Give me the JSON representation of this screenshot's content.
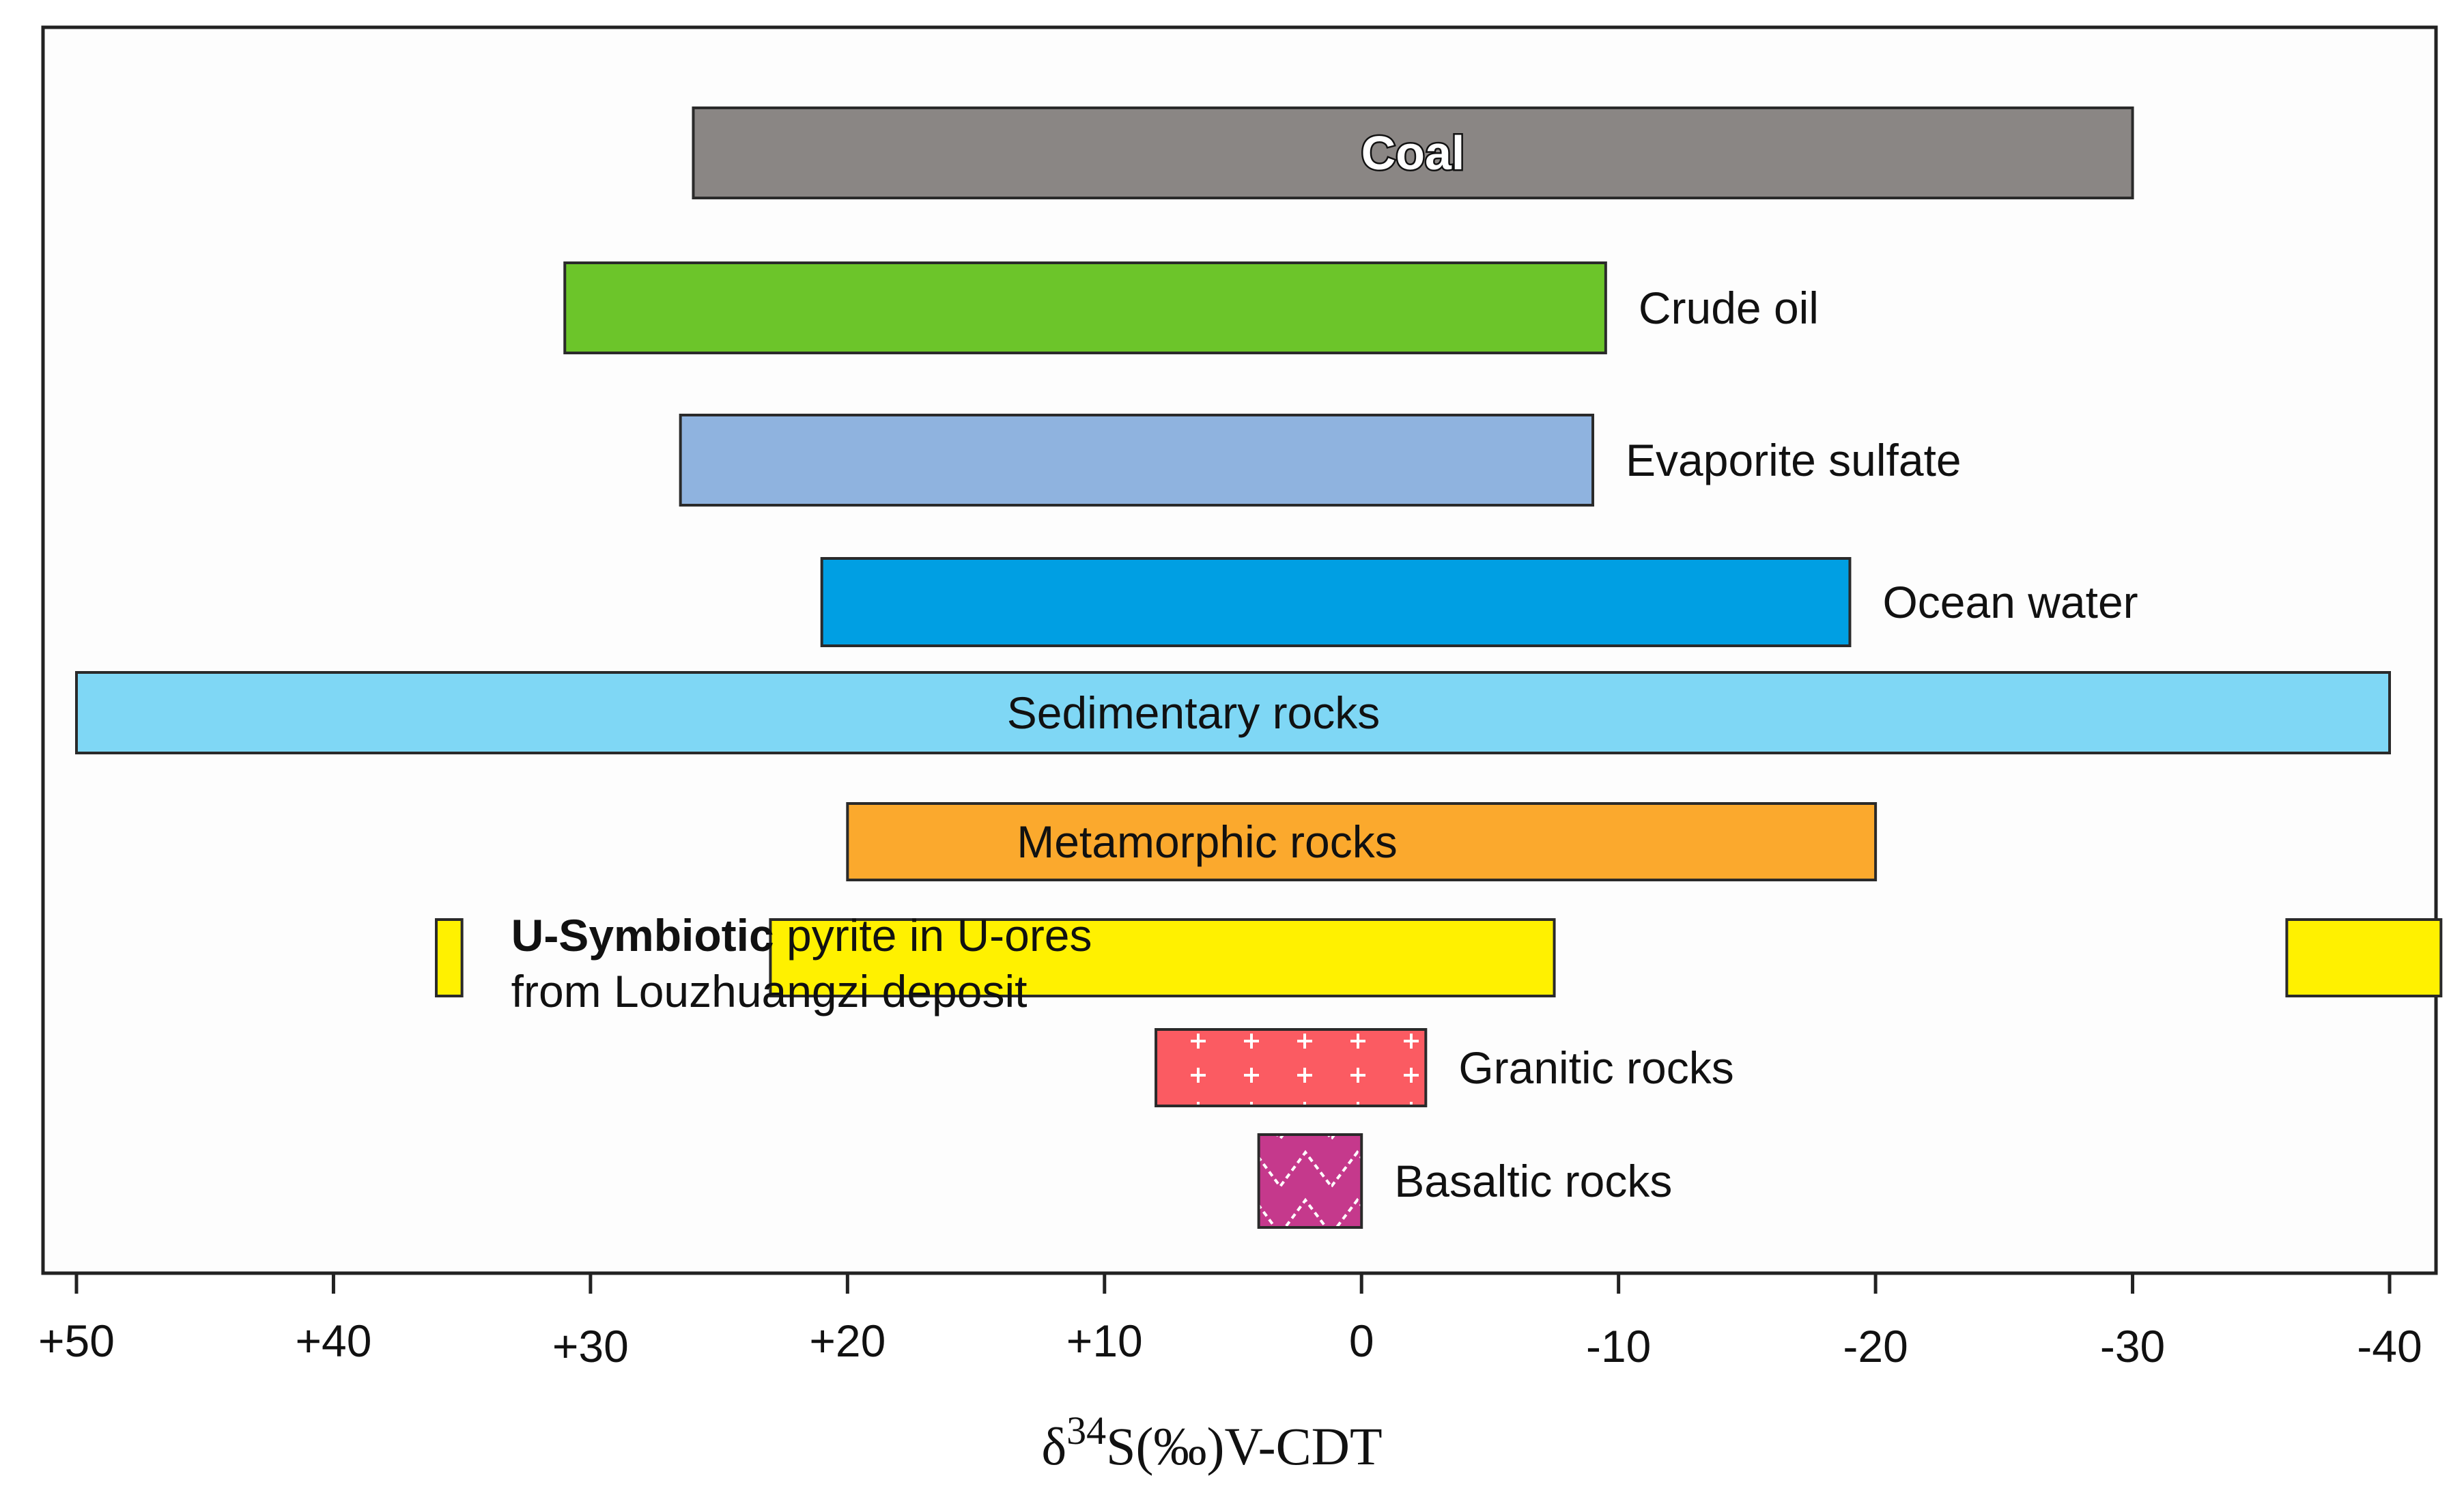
{
  "chart_data": {
    "type": "bar",
    "orientation": "horizontal",
    "xlabel": "δ34S(‰)V-CDT",
    "xlabel_parts": {
      "delta": "δ",
      "superscript": "34",
      "rest": "S(‰)V-CDT"
    },
    "x_direction": "reversed",
    "xlim": [
      51,
      -42
    ],
    "x_ticks": [
      50,
      40,
      30,
      20,
      10,
      0,
      -10,
      -20,
      -30,
      -40
    ],
    "x_tick_labels": [
      "+50",
      "+40",
      "+30",
      "+20",
      "+10",
      "0",
      "-10",
      "-20",
      "-30",
      "-40"
    ],
    "grid": false,
    "legend": "none",
    "series": [
      {
        "name": "Coal",
        "ranges": [
          [
            26,
            -30
          ]
        ],
        "color": "#8a8684",
        "label_position": "inside-bold-outlined"
      },
      {
        "name": "Crude oil",
        "ranges": [
          [
            31,
            -9.5
          ]
        ],
        "color": "#6cc52a",
        "label_position": "right"
      },
      {
        "name": "Evaporite sulfate",
        "ranges": [
          [
            26.5,
            -9
          ]
        ],
        "color": "#8fb3df",
        "label_position": "right"
      },
      {
        "name": "Ocean water",
        "ranges": [
          [
            21,
            -19
          ]
        ],
        "color": "#009fe3",
        "label_position": "right"
      },
      {
        "name": "Sedimentary rocks",
        "ranges": [
          [
            50,
            -40
          ]
        ],
        "color": "#7fd7f5",
        "label_position": "inside"
      },
      {
        "name": "Metamorphic rocks",
        "ranges": [
          [
            20,
            -20
          ]
        ],
        "color": "#fba92d",
        "label_position": "inside"
      },
      {
        "name": "U-Symbiotic pyrite in U-ores from Louzhuangzi deposit",
        "label_bold": "U-Symbiotic",
        "label_rest_line1": " pyrite in U-ores",
        "label_line2": "from Louzhuangzi deposit",
        "ranges": [
          [
            36,
            35
          ],
          [
            23,
            -7.5
          ],
          [
            -36,
            -42
          ]
        ],
        "color": "#fff100",
        "label_position": "right-two-lines"
      },
      {
        "name": "Granitic rocks",
        "ranges": [
          [
            8,
            -2.5
          ]
        ],
        "color": "#fb5b62",
        "pattern": "crosses",
        "label_position": "right"
      },
      {
        "name": "Basaltic rocks",
        "ranges": [
          [
            4,
            0
          ]
        ],
        "color": "#c5398c",
        "pattern": "zigzag",
        "label_position": "right"
      }
    ]
  },
  "colors": {
    "frame_border": "#222222",
    "pattern_marks": "#ffffff"
  }
}
